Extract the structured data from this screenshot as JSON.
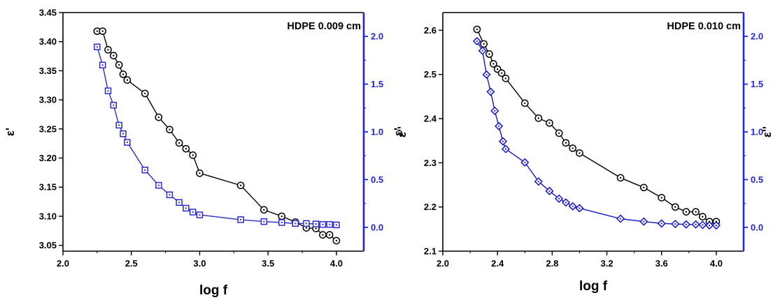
{
  "chart_data": [
    {
      "type": "line",
      "title": "HDPE 0.009 cm",
      "xlabel": "log f",
      "ylabel_left": "ε'",
      "ylabel_right": "ε''",
      "xlim": [
        2.0,
        4.2
      ],
      "xticks": [
        2.0,
        2.5,
        3.0,
        3.5,
        4.0
      ],
      "xtick_labels": [
        "2.0",
        "2.5",
        "3.0",
        "3.5",
        "4.0"
      ],
      "ylim_left": [
        3.04,
        3.45
      ],
      "yticks_left": [
        3.05,
        3.1,
        3.15,
        3.2,
        3.25,
        3.3,
        3.35,
        3.4,
        3.45
      ],
      "ytick_labels_left": [
        "3.05",
        "3.10",
        "3.15",
        "3.20",
        "3.25",
        "3.30",
        "3.35",
        "3.40",
        "3.45"
      ],
      "ylim_right": [
        -0.25,
        2.25
      ],
      "yticks_right": [
        0.0,
        0.5,
        1.0,
        1.5,
        2.0
      ],
      "ytick_labels_right": [
        "0.0",
        "0.5",
        "1.0",
        "1.5",
        "2.0"
      ],
      "series": [
        {
          "axis": "left",
          "marker": "circle-dot",
          "color": "#000000",
          "x": [
            2.25,
            2.29,
            2.33,
            2.37,
            2.41,
            2.44,
            2.47,
            2.6,
            2.7,
            2.78,
            2.85,
            2.9,
            2.95,
            3.0,
            3.3,
            3.47,
            3.6,
            3.7,
            3.78,
            3.85,
            3.9,
            3.95,
            4.0
          ],
          "y": [
            3.418,
            3.418,
            3.386,
            3.376,
            3.36,
            3.344,
            3.334,
            3.311,
            3.27,
            3.249,
            3.226,
            3.216,
            3.205,
            3.174,
            3.153,
            3.111,
            3.1,
            3.09,
            3.08,
            3.079,
            3.068,
            3.068,
            3.058
          ]
        },
        {
          "axis": "right",
          "marker": "square-dot",
          "color": "#2a2ad4",
          "x": [
            2.25,
            2.29,
            2.33,
            2.37,
            2.41,
            2.44,
            2.47,
            2.6,
            2.7,
            2.78,
            2.85,
            2.9,
            2.95,
            3.0,
            3.3,
            3.47,
            3.6,
            3.7,
            3.78,
            3.85,
            3.9,
            3.95,
            4.0
          ],
          "y": [
            1.89,
            1.7,
            1.43,
            1.28,
            1.07,
            0.98,
            0.89,
            0.6,
            0.44,
            0.34,
            0.26,
            0.2,
            0.16,
            0.13,
            0.08,
            0.06,
            0.05,
            0.04,
            0.04,
            0.035,
            0.03,
            0.03,
            0.025
          ]
        }
      ]
    },
    {
      "type": "line",
      "title": "HDPE 0.010 cm",
      "xlabel": "log f",
      "ylabel_left": "ε'",
      "ylabel_right": "ε''",
      "xlim": [
        2.0,
        4.2
      ],
      "xticks": [
        2.0,
        2.4,
        2.8,
        3.2,
        3.6,
        4.0
      ],
      "xtick_labels": [
        "2.0",
        "2.4",
        "2.8",
        "3.2",
        "3.6",
        "4.0"
      ],
      "ylim_left": [
        2.1,
        2.64
      ],
      "yticks_left": [
        2.1,
        2.2,
        2.3,
        2.4,
        2.5,
        2.6
      ],
      "ytick_labels_left": [
        "2.1",
        "2.2",
        "2.3",
        "2.4",
        "2.5",
        "2.6"
      ],
      "ylim_right": [
        -0.25,
        2.25
      ],
      "yticks_right": [
        0.0,
        0.5,
        1.0,
        1.5,
        2.0
      ],
      "ytick_labels_right": [
        "0.0",
        "0.5",
        "1.0",
        "1.5",
        "2.0"
      ],
      "series": [
        {
          "axis": "left",
          "marker": "circle-dot",
          "color": "#000000",
          "x": [
            2.25,
            2.3,
            2.34,
            2.37,
            2.4,
            2.43,
            2.46,
            2.6,
            2.7,
            2.78,
            2.85,
            2.9,
            2.95,
            3.0,
            3.3,
            3.47,
            3.6,
            3.7,
            3.78,
            3.85,
            3.9,
            3.95,
            4.0
          ],
          "y": [
            2.602,
            2.569,
            2.546,
            2.524,
            2.512,
            2.503,
            2.491,
            2.435,
            2.401,
            2.39,
            2.367,
            2.345,
            2.333,
            2.322,
            2.266,
            2.244,
            2.221,
            2.2,
            2.189,
            2.189,
            2.178,
            2.167,
            2.167
          ]
        },
        {
          "axis": "right",
          "marker": "diamond-dot",
          "color": "#1414d2",
          "x": [
            2.25,
            2.29,
            2.32,
            2.35,
            2.38,
            2.41,
            2.44,
            2.46,
            2.6,
            2.7,
            2.78,
            2.85,
            2.9,
            2.95,
            3.0,
            3.3,
            3.47,
            3.6,
            3.7,
            3.78,
            3.85,
            3.9,
            3.95,
            4.0
          ],
          "y": [
            1.95,
            1.85,
            1.6,
            1.42,
            1.22,
            1.06,
            0.9,
            0.82,
            0.68,
            0.48,
            0.38,
            0.3,
            0.26,
            0.22,
            0.2,
            0.09,
            0.06,
            0.04,
            0.035,
            0.03,
            0.03,
            0.025,
            0.02,
            0.02
          ]
        }
      ]
    }
  ]
}
